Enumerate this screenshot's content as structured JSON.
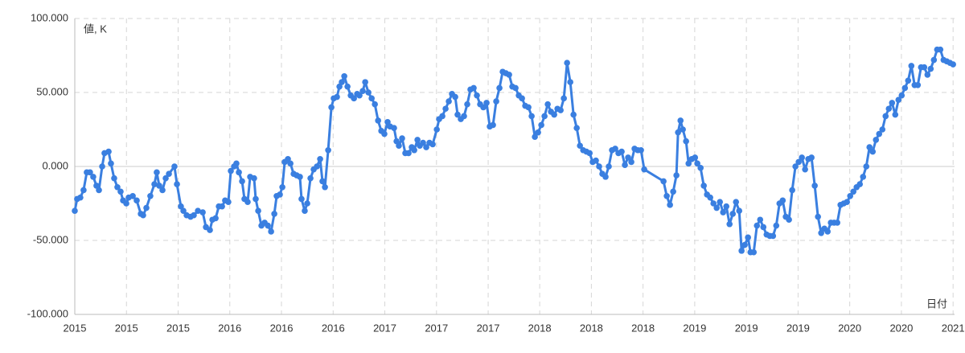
{
  "chart_data": {
    "type": "line",
    "y_label": "値, K",
    "x_label": "日付",
    "color": "#3a7fe0",
    "grid": true,
    "xlim": [
      2015,
      2021.01
    ],
    "ylim": [
      -100,
      100
    ],
    "yticks": [
      {
        "value": -100,
        "label": "-100.000"
      },
      {
        "value": -50,
        "label": "-50.000"
      },
      {
        "value": 0,
        "label": "0.000"
      },
      {
        "value": 50,
        "label": "50.000"
      },
      {
        "value": 100,
        "label": "100.000"
      }
    ],
    "xticks": [
      {
        "value": 2015,
        "label": "2015"
      },
      {
        "value": 2015.353,
        "label": "2015"
      },
      {
        "value": 2015.706,
        "label": "2015"
      },
      {
        "value": 2016.059,
        "label": "2016"
      },
      {
        "value": 2016.412,
        "label": "2016"
      },
      {
        "value": 2016.765,
        "label": "2016"
      },
      {
        "value": 2017.118,
        "label": "2017"
      },
      {
        "value": 2017.471,
        "label": "2017"
      },
      {
        "value": 2017.824,
        "label": "2017"
      },
      {
        "value": 2018.176,
        "label": "2018"
      },
      {
        "value": 2018.529,
        "label": "2018"
      },
      {
        "value": 2018.882,
        "label": "2018"
      },
      {
        "value": 2019.235,
        "label": "2019"
      },
      {
        "value": 2019.588,
        "label": "2019"
      },
      {
        "value": 2019.941,
        "label": "2019"
      },
      {
        "value": 2020.294,
        "label": "2020"
      },
      {
        "value": 2020.647,
        "label": "2020"
      },
      {
        "value": 2021,
        "label": "2021"
      }
    ],
    "x": [
      2015.0,
      2015.016,
      2015.038,
      2015.06,
      2015.082,
      2015.104,
      2015.126,
      2015.148,
      2015.165,
      2015.187,
      2015.203,
      2015.231,
      2015.247,
      2015.269,
      2015.291,
      2015.313,
      2015.33,
      2015.352,
      2015.368,
      2015.396,
      2015.423,
      2015.451,
      2015.467,
      2015.489,
      2015.516,
      2015.544,
      2015.56,
      2015.577,
      2015.599,
      2015.621,
      2015.643,
      2015.681,
      2015.698,
      2015.725,
      2015.742,
      2015.764,
      2015.791,
      2015.813,
      2015.841,
      2015.874,
      2015.896,
      2015.923,
      2015.94,
      2015.962,
      2015.984,
      2016.006,
      2016.027,
      2016.049,
      2016.066,
      2016.088,
      2016.104,
      2016.121,
      2016.143,
      2016.159,
      2016.181,
      2016.198,
      2016.225,
      2016.236,
      2016.253,
      2016.275,
      2016.297,
      2016.319,
      2016.341,
      2016.363,
      2016.379,
      2016.401,
      2016.418,
      2016.434,
      2016.456,
      2016.473,
      2016.495,
      2016.516,
      2016.538,
      2016.549,
      2016.571,
      2016.588,
      2016.61,
      2016.632,
      2016.654,
      2016.676,
      2016.692,
      2016.709,
      2016.731,
      2016.753,
      2016.769,
      2016.791,
      2016.808,
      2016.824,
      2016.841,
      2016.863,
      2016.885,
      2016.907,
      2016.929,
      2016.945,
      2016.967,
      2016.984,
      2017.006,
      2017.028,
      2017.05,
      2017.072,
      2017.094,
      2017.115,
      2017.137,
      2017.154,
      2017.181,
      2017.198,
      2017.214,
      2017.236,
      2017.258,
      2017.28,
      2017.302,
      2017.319,
      2017.341,
      2017.357,
      2017.379,
      2017.401,
      2017.423,
      2017.445,
      2017.473,
      2017.489,
      2017.511,
      2017.533,
      2017.555,
      2017.577,
      2017.599,
      2017.615,
      2017.637,
      2017.659,
      2017.681,
      2017.703,
      2017.725,
      2017.747,
      2017.769,
      2017.791,
      2017.813,
      2017.835,
      2017.857,
      2017.879,
      2017.901,
      2017.923,
      2017.945,
      2017.967,
      2017.989,
      2018.011,
      2018.033,
      2018.055,
      2018.077,
      2018.099,
      2018.121,
      2018.143,
      2018.165,
      2018.187,
      2018.209,
      2018.231,
      2018.253,
      2018.275,
      2018.297,
      2018.319,
      2018.341,
      2018.363,
      2018.385,
      2018.407,
      2018.429,
      2018.451,
      2018.473,
      2018.495,
      2018.517,
      2018.538,
      2018.56,
      2018.582,
      2018.604,
      2018.626,
      2018.648,
      2018.67,
      2018.692,
      2018.714,
      2018.736,
      2018.758,
      2018.78,
      2018.802,
      2018.824,
      2018.846,
      2018.868,
      2018.89,
      2019.022,
      2019.044,
      2019.066,
      2019.088,
      2019.11,
      2019.121,
      2019.138,
      2019.154,
      2019.176,
      2019.193,
      2019.215,
      2019.237,
      2019.253,
      2019.275,
      2019.297,
      2019.319,
      2019.341,
      2019.363,
      2019.385,
      2019.407,
      2019.429,
      2019.451,
      2019.473,
      2019.495,
      2019.517,
      2019.539,
      2019.555,
      2019.577,
      2019.599,
      2019.616,
      2019.638,
      2019.66,
      2019.682,
      2019.704,
      2019.726,
      2019.748,
      2019.77,
      2019.792,
      2019.814,
      2019.836,
      2019.857,
      2019.879,
      2019.901,
      2019.923,
      2019.945,
      2019.967,
      2019.989,
      2020.011,
      2020.033,
      2020.055,
      2020.077,
      2020.099,
      2020.121,
      2020.143,
      2020.165,
      2020.187,
      2020.209,
      2020.231,
      2020.253,
      2020.275,
      2020.297,
      2020.319,
      2020.341,
      2020.363,
      2020.385,
      2020.407,
      2020.429,
      2020.451,
      2020.473,
      2020.495,
      2020.517,
      2020.539,
      2020.561,
      2020.583,
      2020.605,
      2020.627,
      2020.649,
      2020.671,
      2020.693,
      2020.715,
      2020.737,
      2020.759,
      2020.781,
      2020.803,
      2020.825,
      2020.847,
      2020.869,
      2020.891,
      2020.913,
      2020.935,
      2020.957,
      2020.979,
      2021.0
    ],
    "values": [
      -30,
      -22,
      -21,
      -16,
      -4,
      -4,
      -7,
      -13,
      -16,
      0,
      9,
      10,
      2,
      -8,
      -14,
      -17,
      -23,
      -25,
      -21,
      -20,
      -23,
      -32,
      -33,
      -28,
      -20,
      -12,
      -4,
      -13,
      -16,
      -8,
      -5,
      0,
      -12,
      -27,
      -30,
      -33,
      -34,
      -33,
      -30,
      -31,
      -41,
      -43,
      -36,
      -35,
      -27,
      -27,
      -23,
      -24,
      -3,
      0,
      2,
      -4,
      -10,
      -22,
      -24,
      -7,
      -8,
      -22,
      -30,
      -40,
      -38,
      -40,
      -44,
      -32,
      -20,
      -19,
      -14,
      3,
      5,
      2,
      -5,
      -6,
      -7,
      -22,
      -30,
      -25,
      -8,
      -2,
      0,
      5,
      -10,
      -14,
      11,
      40,
      46,
      47,
      54,
      57,
      61,
      54,
      48,
      46,
      49,
      48,
      51,
      57,
      50,
      46,
      42,
      31,
      24,
      22,
      30,
      27,
      26,
      17,
      14,
      19,
      9,
      9,
      13,
      11,
      18,
      14,
      16,
      13,
      16,
      15,
      25,
      32,
      34,
      39,
      44,
      49,
      47,
      35,
      32,
      34,
      42,
      52,
      53,
      48,
      42,
      40,
      43,
      27,
      28,
      44,
      53,
      64,
      63,
      62,
      54,
      53,
      48,
      46,
      41,
      40,
      34,
      20,
      23,
      28,
      34,
      42,
      37,
      35,
      39,
      38,
      46,
      70,
      57,
      35,
      26,
      14,
      11,
      10,
      9,
      3,
      4,
      0,
      -5,
      -7,
      0,
      11,
      12,
      9,
      10,
      1,
      6,
      3,
      12,
      11,
      11,
      -2,
      -10,
      -20,
      -26,
      -17,
      -6,
      23,
      31,
      25,
      17,
      2,
      5,
      6,
      2,
      -1,
      -13,
      -19,
      -21,
      -25,
      -28,
      -24,
      -31,
      -27,
      -39,
      -32,
      -24,
      -30,
      -57,
      -53,
      -48,
      -58,
      -58,
      -40,
      -36,
      -41,
      -46,
      -47,
      -47,
      -40,
      -25,
      -23,
      -34,
      -36,
      -16,
      0,
      3,
      6,
      -2,
      5,
      6,
      -13,
      -34,
      -45,
      -42,
      -44,
      -38,
      -38,
      -38,
      -26,
      -25,
      -24,
      -20,
      -17,
      -14,
      -12,
      -7,
      0,
      13,
      10,
      18,
      22,
      25,
      34,
      39,
      43,
      35,
      45,
      48,
      53,
      58,
      68,
      55,
      55,
      67,
      67,
      62,
      66,
      72,
      79,
      79,
      72,
      71,
      70,
      69
    ]
  }
}
